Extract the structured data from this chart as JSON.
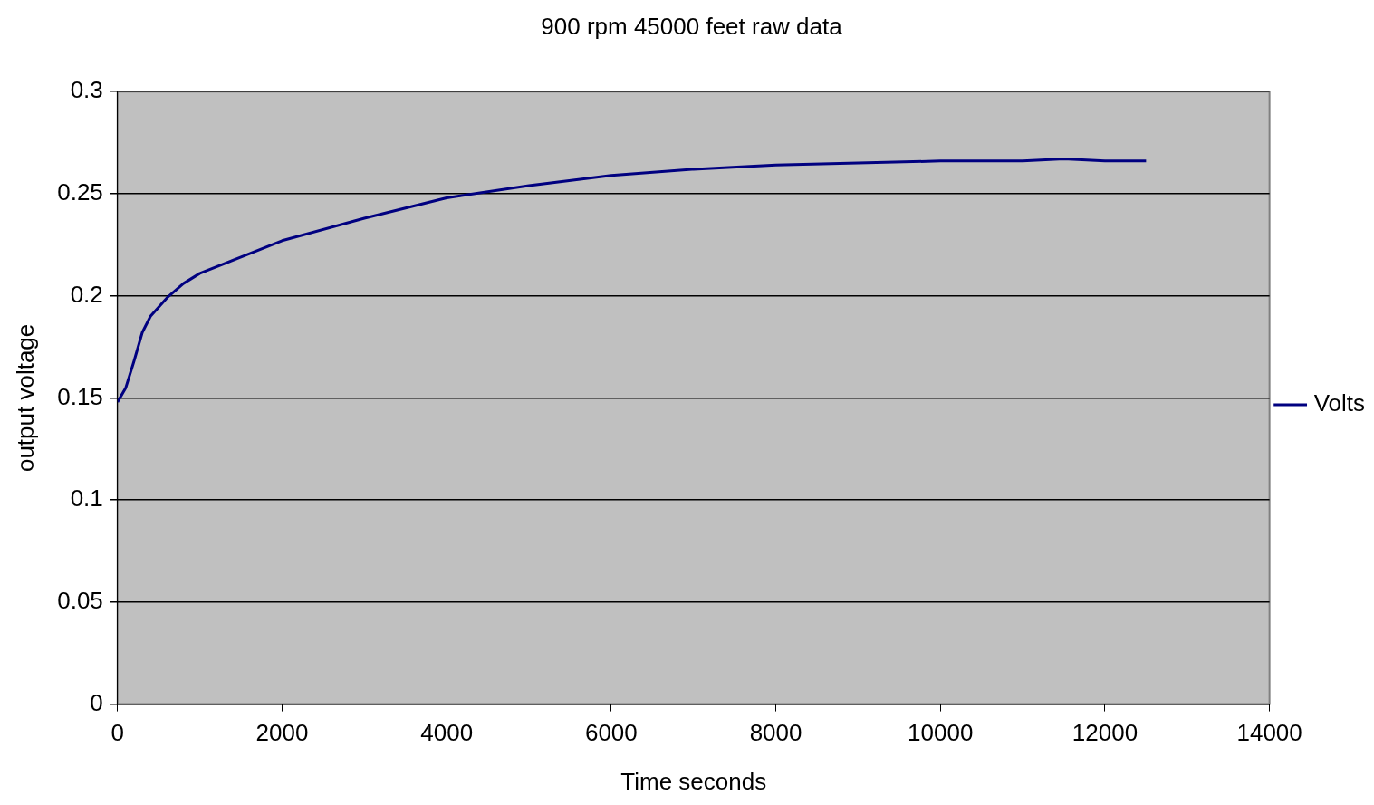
{
  "chart_data": {
    "type": "line",
    "title": "900 rpm 45000 feet raw data",
    "xlabel": "Time seconds",
    "ylabel": "output voltage",
    "x": [
      0,
      100,
      200,
      300,
      400,
      600,
      800,
      1000,
      1500,
      2000,
      3000,
      4000,
      5000,
      6000,
      7000,
      8000,
      9000,
      10000,
      11000,
      11500,
      12000,
      12500
    ],
    "series": [
      {
        "name": "Volts",
        "color": "#000080",
        "values": [
          0.148,
          0.155,
          0.168,
          0.182,
          0.19,
          0.199,
          0.206,
          0.211,
          0.219,
          0.227,
          0.238,
          0.248,
          0.254,
          0.259,
          0.262,
          0.264,
          0.265,
          0.266,
          0.266,
          0.267,
          0.266,
          0.266
        ]
      }
    ],
    "xlim": [
      0,
      14000
    ],
    "xticks": [
      0,
      2000,
      4000,
      6000,
      8000,
      10000,
      12000,
      14000
    ],
    "ylim": [
      0,
      0.3
    ],
    "yticks": [
      0,
      0.05,
      0.1,
      0.15,
      0.2,
      0.25,
      0.3
    ],
    "grid": "y",
    "legend": "right",
    "marker": "none",
    "line_style": "solid"
  }
}
